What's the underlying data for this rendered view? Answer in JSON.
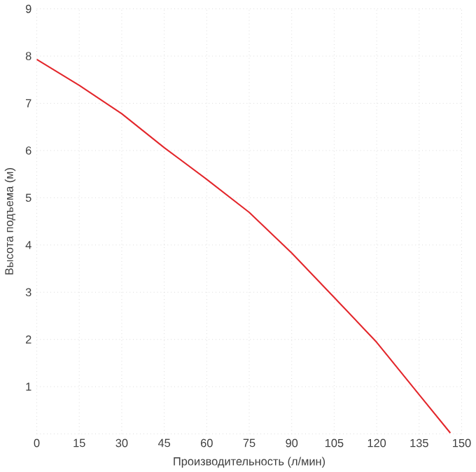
{
  "chart_data": {
    "type": "line",
    "xlabel": "Производительность (л/мин)",
    "ylabel": "Высота подъема (м)",
    "x": [
      0,
      15,
      30,
      45,
      60,
      75,
      90,
      105,
      120,
      135,
      146
    ],
    "series": [
      {
        "color": "#e3262b",
        "values": [
          7.93,
          7.38,
          6.78,
          6.06,
          5.39,
          4.69,
          3.83,
          2.89,
          1.94,
          0.83,
          0.02
        ]
      }
    ],
    "xlim": [
      0,
      150
    ],
    "ylim": [
      0,
      9
    ],
    "xticks": [
      0,
      15,
      30,
      45,
      60,
      75,
      90,
      105,
      120,
      135,
      150
    ],
    "yticks": [
      {
        "value": 0,
        "label": null
      },
      1,
      2,
      3,
      4,
      5,
      6,
      7,
      8,
      9
    ],
    "grid": true,
    "marker": "none",
    "line_style": "solid"
  }
}
